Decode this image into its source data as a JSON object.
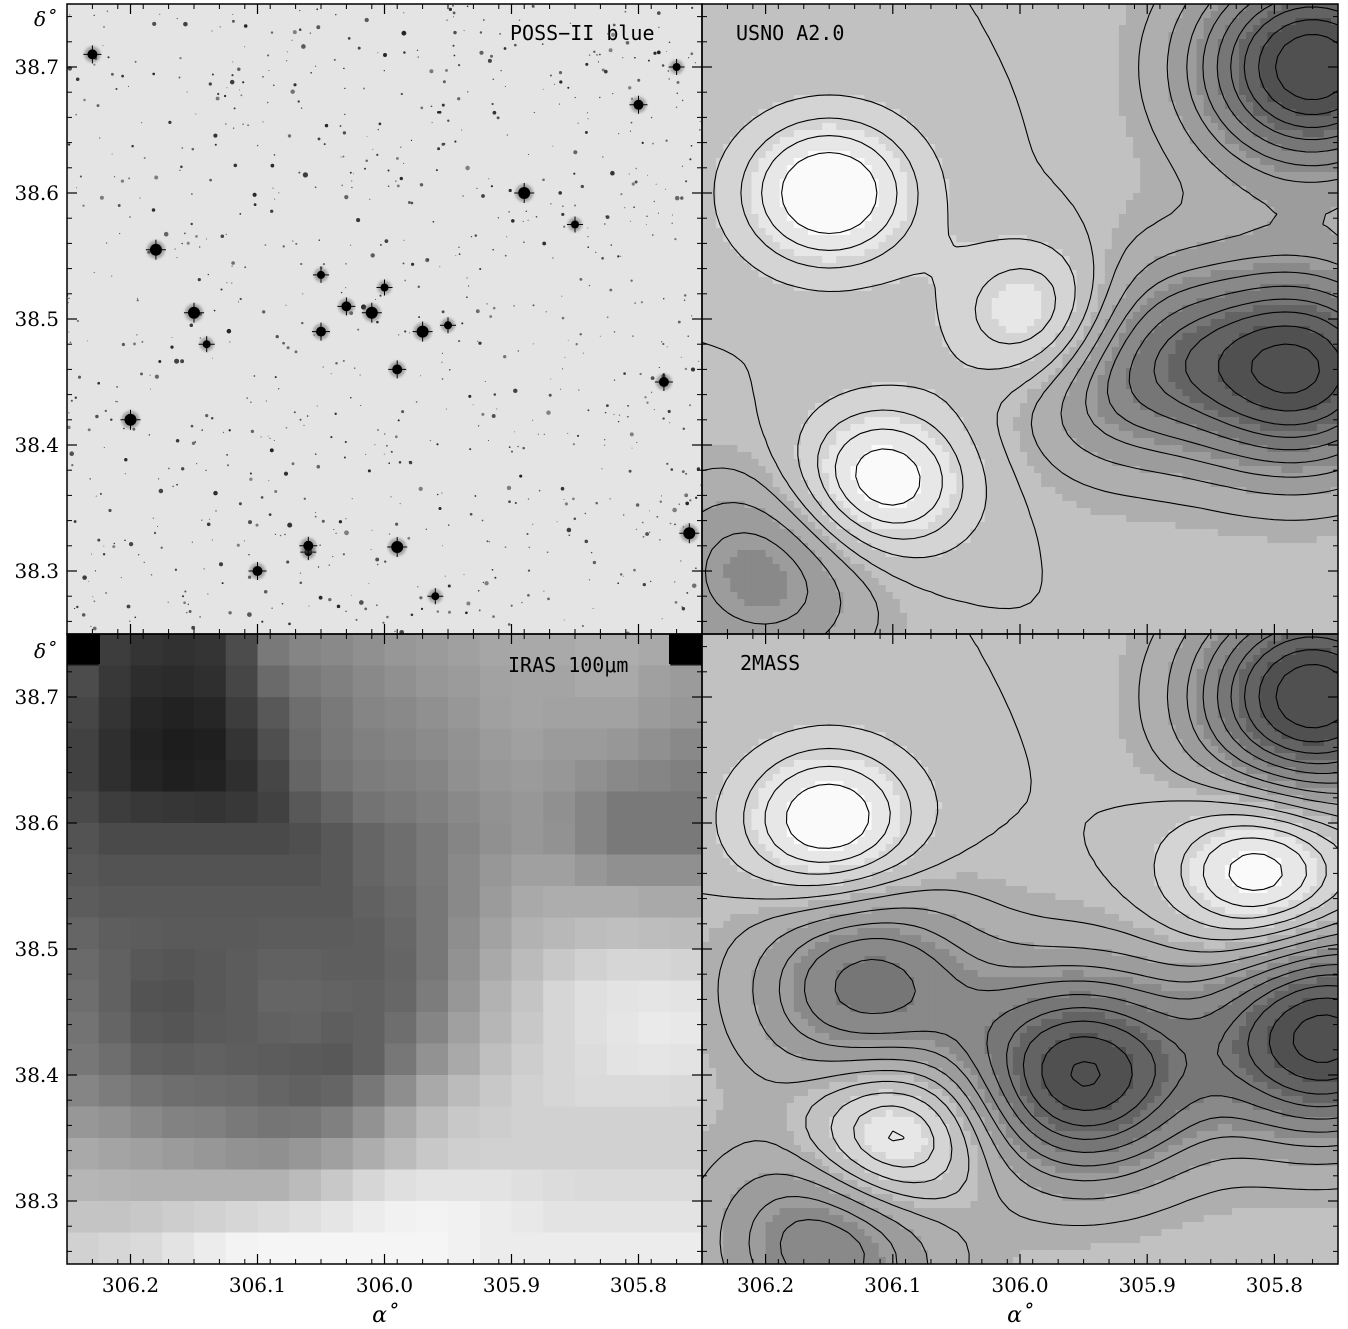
{
  "figure": {
    "panels": [
      {
        "id": "poss",
        "label": "POSS−II blue"
      },
      {
        "id": "usno",
        "label": "USNO A2.0"
      },
      {
        "id": "iras",
        "label": "IRAS 100μm"
      },
      {
        "id": "twomass",
        "label": "2MASS"
      }
    ],
    "xaxis_label": "α˚",
    "yaxis_label": "δ˚"
  },
  "chart_data": [
    {
      "type": "heatmap",
      "panel": "POSS−II blue",
      "xlim": [
        306.25,
        305.75
      ],
      "ylim": [
        38.25,
        38.75
      ],
      "x_ticks": [
        306.2,
        306.1,
        306.0,
        305.9,
        305.8
      ],
      "y_ticks": [
        "38.3",
        "38.4",
        "38.5",
        "38.6",
        "38.7"
      ],
      "bright_stars": [
        [
          306.05,
          38.535
        ],
        [
          306.03,
          38.51
        ],
        [
          306.01,
          38.505
        ],
        [
          306.0,
          38.525
        ],
        [
          306.05,
          38.49
        ],
        [
          305.97,
          38.49
        ],
        [
          305.95,
          38.495
        ],
        [
          305.99,
          38.46
        ],
        [
          306.15,
          38.505
        ],
        [
          306.14,
          38.48
        ],
        [
          305.78,
          38.45
        ],
        [
          306.2,
          38.42
        ],
        [
          306.06,
          38.315
        ],
        [
          306.06,
          38.32
        ],
        [
          305.99,
          38.319
        ],
        [
          305.96,
          38.28
        ],
        [
          306.1,
          38.3
        ],
        [
          305.76,
          38.33
        ],
        [
          305.77,
          38.7
        ],
        [
          305.8,
          38.67
        ],
        [
          305.89,
          38.6
        ],
        [
          305.85,
          38.575
        ],
        [
          306.23,
          38.71
        ],
        [
          306.18,
          38.555
        ]
      ]
    },
    {
      "type": "heatmap",
      "panel": "USNO A2.0",
      "xlim": [
        306.25,
        305.75
      ],
      "ylim": [
        38.25,
        38.75
      ],
      "x_ticks": [
        306.2,
        306.1,
        306.0,
        305.9,
        305.8
      ],
      "y_ticks": [
        38.3,
        38.4,
        38.5,
        38.6,
        38.7
      ],
      "density_peaks": [
        {
          "ra": 305.77,
          "dec": 38.7,
          "level": 1.0
        },
        {
          "ra": 305.78,
          "dec": 38.46,
          "level": 0.9
        },
        {
          "ra": 305.92,
          "dec": 38.47,
          "level": 0.55
        },
        {
          "ra": 306.2,
          "dec": 38.3,
          "level": 0.4
        }
      ],
      "density_holes": [
        {
          "ra": 306.15,
          "dec": 38.6
        },
        {
          "ra": 306.11,
          "dec": 38.37
        },
        {
          "ra": 305.98,
          "dec": 38.5
        }
      ]
    },
    {
      "type": "heatmap",
      "panel": "IRAS 100μm",
      "xlim": [
        306.25,
        305.75
      ],
      "ylim": [
        38.25,
        38.75
      ],
      "x_ticks": [
        306.2,
        306.1,
        306.0,
        305.9,
        305.8
      ],
      "y_ticks": [
        38.3,
        38.4,
        38.5,
        38.6,
        38.7
      ],
      "grid_rows": 20,
      "grid_cols": 20,
      "values_description_rows_top_to_bottom": "0 = darkest, 1 = lightest",
      "values": [
        [
          0.0,
          0.18,
          0.14,
          0.13,
          0.14,
          0.25,
          0.45,
          0.5,
          0.52,
          0.55,
          0.58,
          0.6,
          0.62,
          0.65,
          0.66,
          0.66,
          0.68,
          0.68,
          0.66,
          0.0
        ],
        [
          0.25,
          0.16,
          0.11,
          0.1,
          0.12,
          0.22,
          0.38,
          0.45,
          0.48,
          0.52,
          0.55,
          0.58,
          0.6,
          0.63,
          0.64,
          0.64,
          0.66,
          0.66,
          0.62,
          0.6
        ],
        [
          0.22,
          0.14,
          0.08,
          0.06,
          0.08,
          0.18,
          0.3,
          0.4,
          0.45,
          0.5,
          0.52,
          0.55,
          0.58,
          0.62,
          0.64,
          0.63,
          0.63,
          0.63,
          0.6,
          0.58
        ],
        [
          0.2,
          0.12,
          0.06,
          0.04,
          0.05,
          0.14,
          0.26,
          0.38,
          0.44,
          0.48,
          0.5,
          0.53,
          0.56,
          0.6,
          0.62,
          0.6,
          0.6,
          0.58,
          0.55,
          0.52
        ],
        [
          0.2,
          0.12,
          0.07,
          0.05,
          0.06,
          0.12,
          0.22,
          0.36,
          0.42,
          0.46,
          0.48,
          0.5,
          0.55,
          0.58,
          0.6,
          0.58,
          0.55,
          0.52,
          0.5,
          0.48
        ],
        [
          0.24,
          0.18,
          0.16,
          0.15,
          0.14,
          0.16,
          0.2,
          0.3,
          0.36,
          0.42,
          0.45,
          0.48,
          0.52,
          0.56,
          0.58,
          0.55,
          0.5,
          0.45,
          0.45,
          0.45
        ],
        [
          0.28,
          0.24,
          0.24,
          0.24,
          0.24,
          0.24,
          0.24,
          0.26,
          0.3,
          0.36,
          0.4,
          0.45,
          0.5,
          0.55,
          0.58,
          0.56,
          0.5,
          0.45,
          0.45,
          0.45
        ],
        [
          0.3,
          0.28,
          0.28,
          0.28,
          0.28,
          0.28,
          0.28,
          0.28,
          0.3,
          0.36,
          0.4,
          0.45,
          0.52,
          0.58,
          0.62,
          0.62,
          0.58,
          0.55,
          0.55,
          0.55
        ],
        [
          0.32,
          0.3,
          0.3,
          0.3,
          0.3,
          0.3,
          0.3,
          0.3,
          0.3,
          0.34,
          0.38,
          0.44,
          0.52,
          0.6,
          0.66,
          0.68,
          0.68,
          0.68,
          0.66,
          0.66
        ],
        [
          0.36,
          0.33,
          0.32,
          0.31,
          0.31,
          0.31,
          0.32,
          0.32,
          0.32,
          0.33,
          0.37,
          0.44,
          0.54,
          0.63,
          0.7,
          0.73,
          0.75,
          0.76,
          0.75,
          0.74
        ],
        [
          0.38,
          0.34,
          0.3,
          0.29,
          0.3,
          0.32,
          0.34,
          0.34,
          0.33,
          0.33,
          0.36,
          0.44,
          0.56,
          0.66,
          0.74,
          0.8,
          0.84,
          0.86,
          0.86,
          0.85
        ],
        [
          0.4,
          0.34,
          0.28,
          0.27,
          0.3,
          0.32,
          0.36,
          0.36,
          0.35,
          0.34,
          0.37,
          0.46,
          0.58,
          0.7,
          0.78,
          0.86,
          0.9,
          0.92,
          0.93,
          0.92
        ],
        [
          0.42,
          0.36,
          0.3,
          0.29,
          0.31,
          0.32,
          0.34,
          0.35,
          0.33,
          0.34,
          0.4,
          0.5,
          0.62,
          0.72,
          0.8,
          0.86,
          0.9,
          0.93,
          0.95,
          0.94
        ],
        [
          0.44,
          0.4,
          0.34,
          0.33,
          0.34,
          0.33,
          0.32,
          0.31,
          0.3,
          0.34,
          0.44,
          0.56,
          0.66,
          0.76,
          0.82,
          0.86,
          0.89,
          0.92,
          0.93,
          0.92
        ],
        [
          0.5,
          0.46,
          0.42,
          0.4,
          0.39,
          0.38,
          0.36,
          0.34,
          0.36,
          0.44,
          0.54,
          0.66,
          0.74,
          0.8,
          0.84,
          0.86,
          0.88,
          0.88,
          0.88,
          0.87
        ],
        [
          0.58,
          0.56,
          0.52,
          0.49,
          0.48,
          0.45,
          0.43,
          0.44,
          0.48,
          0.56,
          0.66,
          0.74,
          0.8,
          0.82,
          0.84,
          0.84,
          0.84,
          0.84,
          0.84,
          0.84
        ],
        [
          0.66,
          0.64,
          0.62,
          0.6,
          0.58,
          0.56,
          0.55,
          0.58,
          0.62,
          0.68,
          0.74,
          0.8,
          0.83,
          0.84,
          0.84,
          0.84,
          0.84,
          0.84,
          0.84,
          0.84
        ],
        [
          0.72,
          0.71,
          0.7,
          0.7,
          0.7,
          0.7,
          0.7,
          0.74,
          0.8,
          0.86,
          0.9,
          0.92,
          0.92,
          0.92,
          0.9,
          0.89,
          0.88,
          0.88,
          0.88,
          0.88
        ],
        [
          0.78,
          0.78,
          0.8,
          0.82,
          0.84,
          0.86,
          0.88,
          0.9,
          0.93,
          0.96,
          0.98,
          0.99,
          0.98,
          0.96,
          0.94,
          0.92,
          0.92,
          0.92,
          0.92,
          0.92
        ],
        [
          0.84,
          0.86,
          0.88,
          0.92,
          0.96,
          0.99,
          1.0,
          1.0,
          1.0,
          1.0,
          1.0,
          1.0,
          0.98,
          0.96,
          0.96,
          0.96,
          0.96,
          0.96,
          0.96,
          0.96
        ]
      ]
    },
    {
      "type": "heatmap",
      "panel": "2MASS",
      "xlim": [
        306.25,
        305.75
      ],
      "ylim": [
        38.25,
        38.75
      ],
      "x_ticks": [
        306.2,
        306.1,
        306.0,
        305.9,
        305.8
      ],
      "y_ticks": [
        38.3,
        38.4,
        38.5,
        38.6,
        38.7
      ],
      "density_peaks": [
        {
          "ra": 305.77,
          "dec": 38.7,
          "level": 1.0
        },
        {
          "ra": 305.95,
          "dec": 38.4,
          "level": 0.9
        },
        {
          "ra": 305.76,
          "dec": 38.43,
          "level": 0.95
        },
        {
          "ra": 306.12,
          "dec": 38.47,
          "level": 0.55
        },
        {
          "ra": 306.15,
          "dec": 38.27,
          "level": 0.5
        }
      ],
      "density_holes": [
        {
          "ra": 306.15,
          "dec": 38.6
        },
        {
          "ra": 305.81,
          "dec": 38.56
        },
        {
          "ra": 306.1,
          "dec": 38.35
        }
      ]
    }
  ]
}
